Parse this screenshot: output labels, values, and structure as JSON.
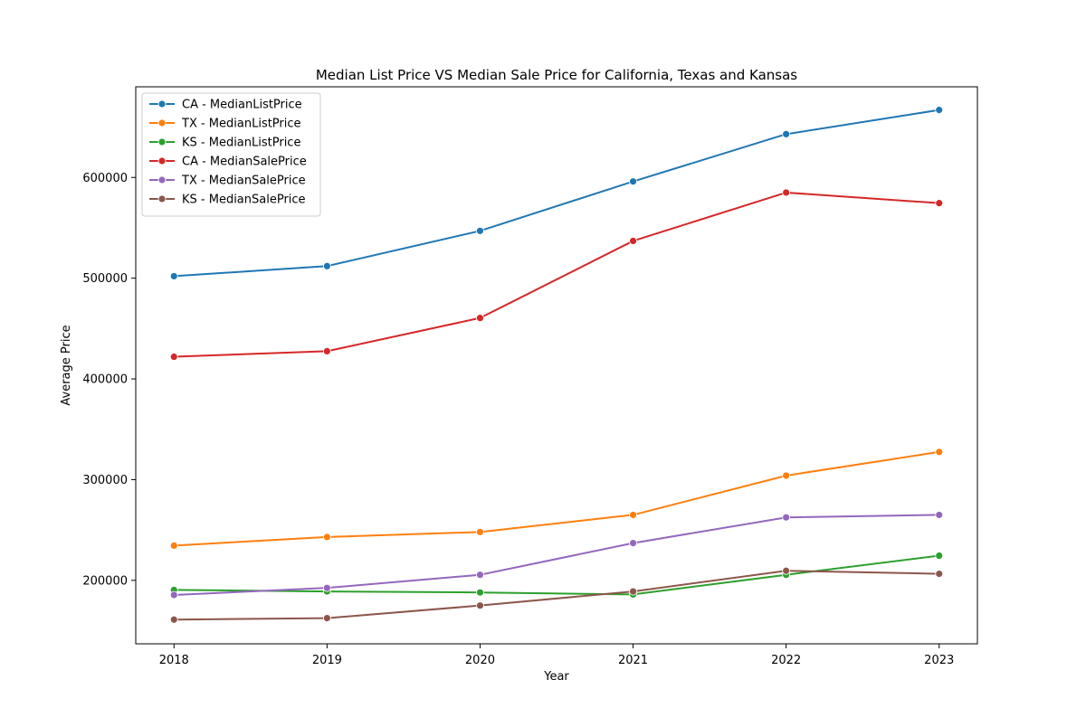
{
  "chart_data": {
    "type": "line",
    "title": "Median List Price VS Median Sale Price for California, Texas and Kansas",
    "xlabel": "Year",
    "ylabel": "Average Price",
    "x": [
      2018,
      2019,
      2020,
      2021,
      2022,
      2023
    ],
    "x_tick_labels": [
      "2018",
      "2019",
      "2020",
      "2021",
      "2022",
      "2023"
    ],
    "xlim": [
      2017.75,
      2023.25
    ],
    "ylim": [
      137000,
      690000
    ],
    "y_ticks": [
      200000,
      300000,
      400000,
      500000,
      600000
    ],
    "y_tick_labels": [
      "200000",
      "300000",
      "400000",
      "500000",
      "600000"
    ],
    "grid": false,
    "legend_position": "top-left",
    "markers": true,
    "series": [
      {
        "name": "CA - MedianListPrice",
        "color": "#1f77b4",
        "values": [
          502000,
          512000,
          547000,
          596000,
          643000,
          667000
        ]
      },
      {
        "name": "TX - MedianListPrice",
        "color": "#ff7f0e",
        "values": [
          234500,
          243000,
          248000,
          265000,
          304000,
          327500
        ]
      },
      {
        "name": "KS - MedianListPrice",
        "color": "#2ca02c",
        "values": [
          190500,
          189000,
          188000,
          186000,
          205500,
          224500
        ]
      },
      {
        "name": "CA - MedianSalePrice",
        "color": "#d62728",
        "values": [
          422000,
          427500,
          460500,
          537000,
          585000,
          574500
        ]
      },
      {
        "name": "TX - MedianSalePrice",
        "color": "#9467bd",
        "values": [
          185500,
          192500,
          205500,
          237000,
          262500,
          265000
        ]
      },
      {
        "name": "KS - MedianSalePrice",
        "color": "#8c564b",
        "values": [
          161000,
          162500,
          175000,
          189000,
          209500,
          206500
        ]
      }
    ]
  }
}
